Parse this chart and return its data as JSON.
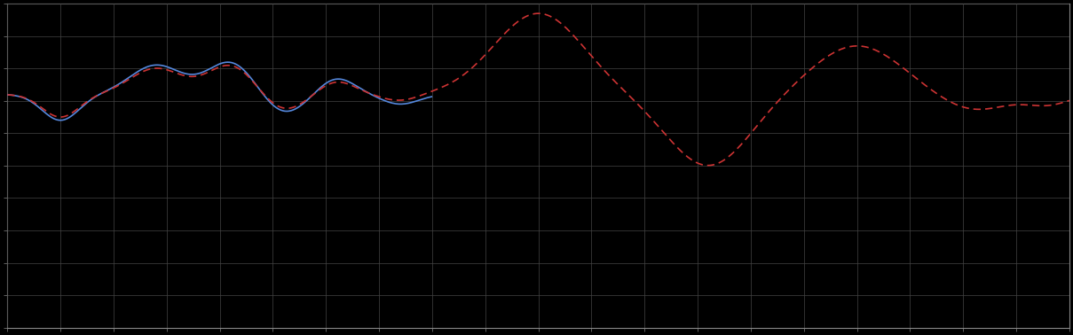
{
  "background_color": "#000000",
  "plot_bg_color": "#000000",
  "grid_color": "#444444",
  "line1_color": "#5588dd",
  "line2_color": "#cc3333",
  "line1_style": "solid",
  "line2_style": "dashed",
  "line_width": 1.2,
  "figsize": [
    12.09,
    3.78
  ],
  "dpi": 100,
  "xlim": [
    0,
    100
  ],
  "ylim": [
    0,
    10
  ],
  "spine_color": "#888888",
  "tick_color": "#888888",
  "data_ymin": 5.5,
  "data_ymax": 9.5
}
